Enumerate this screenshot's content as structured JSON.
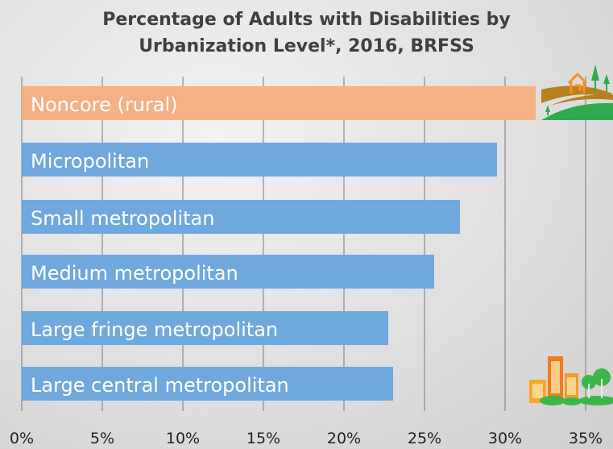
{
  "chart_data": {
    "type": "bar",
    "orientation": "horizontal",
    "title_lines": [
      "Percentage of Adults with Disabilities by",
      "Urbanization Level*, 2016, BRFSS"
    ],
    "categories": [
      "Noncore (rural)",
      "Micropolitan",
      "Small metropolitan",
      "Medium metropolitan",
      "Large fringe metropolitan",
      "Large central metropolitan"
    ],
    "values": [
      31.9,
      29.5,
      27.2,
      25.6,
      22.75,
      23.05
    ],
    "colors": [
      "#f4b183",
      "#6fa8dc",
      "#6fa8dc",
      "#6fa8dc",
      "#6fa8dc",
      "#6fa8dc"
    ],
    "xlim": [
      0,
      35
    ],
    "xticks": [
      0,
      5,
      10,
      15,
      20,
      25,
      30,
      35
    ],
    "xtick_labels": [
      "0%",
      "5%",
      "10%",
      "15%",
      "20%",
      "25%",
      "30%",
      "35%"
    ],
    "grid": "vertical",
    "icons": [
      "rural-landscape-icon",
      "city-buildings-icon"
    ]
  }
}
